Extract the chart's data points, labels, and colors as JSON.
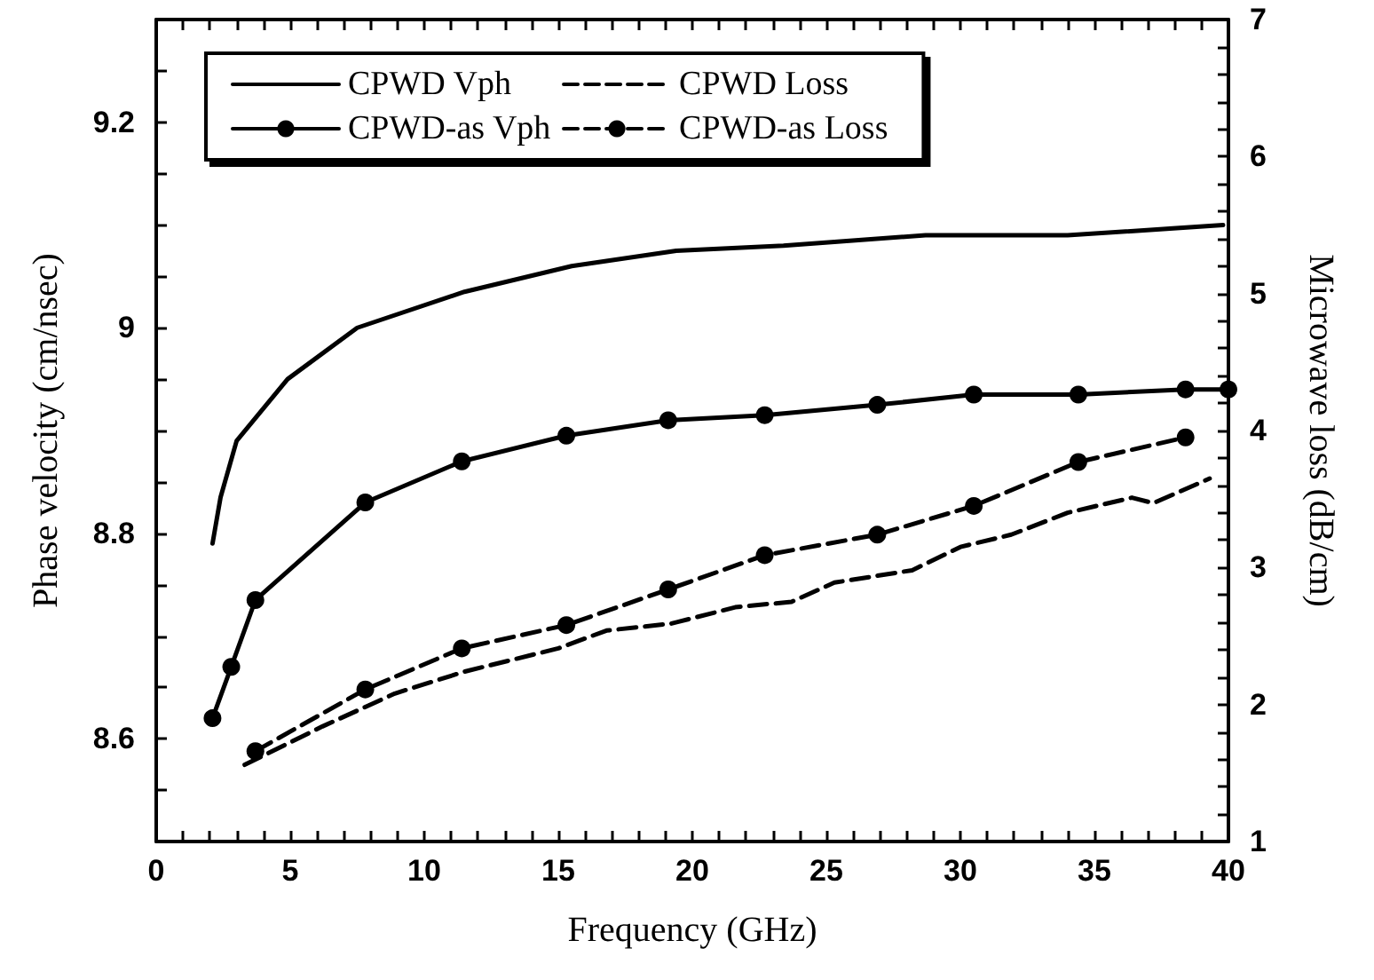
{
  "chart_data": {
    "type": "line",
    "xlabel": "Frequency (GHz)",
    "ylabel": "Phase velocity (cm/nsec)",
    "y2label": "Microwave loss (dB/cm)",
    "xlim": [
      0,
      40
    ],
    "xticks": [
      0,
      {
        "value": 1,
        "label": null
      },
      {
        "value": 2,
        "label": null
      },
      {
        "value": 3,
        "label": null
      },
      {
        "value": 4,
        "label": null
      },
      5,
      {
        "value": 6,
        "label": null
      },
      {
        "value": 7,
        "label": null
      },
      {
        "value": 8,
        "label": null
      },
      {
        "value": 9,
        "label": null
      },
      10,
      {
        "value": 11,
        "label": null
      },
      {
        "value": 12,
        "label": null
      },
      {
        "value": 13,
        "label": null
      },
      {
        "value": 14,
        "label": null
      },
      15,
      {
        "value": 16,
        "label": null
      },
      {
        "value": 17,
        "label": null
      },
      {
        "value": 18,
        "label": null
      },
      {
        "value": 19,
        "label": null
      },
      20,
      {
        "value": 21,
        "label": null
      },
      {
        "value": 22,
        "label": null
      },
      {
        "value": 23,
        "label": null
      },
      {
        "value": 24,
        "label": null
      },
      25,
      {
        "value": 26,
        "label": null
      },
      {
        "value": 27,
        "label": null
      },
      {
        "value": 28,
        "label": null
      },
      {
        "value": 29,
        "label": null
      },
      30,
      {
        "value": 31,
        "label": null
      },
      {
        "value": 32,
        "label": null
      },
      {
        "value": 33,
        "label": null
      },
      {
        "value": 34,
        "label": null
      },
      35,
      {
        "value": 36,
        "label": null
      },
      {
        "value": 37,
        "label": null
      },
      {
        "value": 38,
        "label": null
      },
      {
        "value": 39,
        "label": null
      },
      40
    ],
    "ylim": [
      8.5,
      9.3
    ],
    "yticks": [
      {
        "value": 8.55,
        "label": null
      },
      8.6,
      {
        "value": 8.65,
        "label": null
      },
      {
        "value": 8.7,
        "label": null
      },
      {
        "value": 8.75,
        "label": null
      },
      8.8,
      {
        "value": 8.85,
        "label": null
      },
      {
        "value": 8.9,
        "label": null
      },
      {
        "value": 8.95,
        "label": null
      },
      9,
      {
        "value": 9.05,
        "label": null
      },
      {
        "value": 9.1,
        "label": null
      },
      {
        "value": 9.15,
        "label": null
      },
      9.2,
      {
        "value": 9.25,
        "label": null
      }
    ],
    "y2lim": [
      1,
      7
    ],
    "y2ticks": [
      1,
      {
        "value": 1.2,
        "label": null
      },
      {
        "value": 1.4,
        "label": null
      },
      {
        "value": 1.6,
        "label": null
      },
      {
        "value": 1.8,
        "label": null
      },
      2,
      {
        "value": 2.2,
        "label": null
      },
      {
        "value": 2.4,
        "label": null
      },
      {
        "value": 2.6,
        "label": null
      },
      {
        "value": 2.8,
        "label": null
      },
      3,
      {
        "value": 3.2,
        "label": null
      },
      {
        "value": 3.4,
        "label": null
      },
      {
        "value": 3.6,
        "label": null
      },
      {
        "value": 3.8,
        "label": null
      },
      4,
      {
        "value": 4.2,
        "label": null
      },
      {
        "value": 4.4,
        "label": null
      },
      {
        "value": 4.6,
        "label": null
      },
      {
        "value": 4.8,
        "label": null
      },
      5,
      {
        "value": 5.2,
        "label": null
      },
      {
        "value": 5.4,
        "label": null
      },
      {
        "value": 5.6,
        "label": null
      },
      {
        "value": 5.8,
        "label": null
      },
      6,
      {
        "value": 6.2,
        "label": null
      },
      {
        "value": 6.4,
        "label": null
      },
      {
        "value": 6.6,
        "label": null
      },
      {
        "value": 6.8,
        "label": null
      },
      7
    ],
    "grid": false,
    "legend": "top left",
    "series": [
      {
        "name": "CPWD Vph",
        "color": "#000000",
        "marker": "none",
        "line_style": "solid",
        "x": [
          2.1,
          2.4,
          3.0,
          4.9,
          7.5,
          11.5,
          15.5,
          19.4,
          23.4,
          28.7,
          34.0,
          39.8
        ],
        "values": [
          8.79,
          8.835,
          8.89,
          8.95,
          9.0,
          9.035,
          9.06,
          9.075,
          9.08,
          9.09,
          9.09,
          9.1
        ]
      },
      {
        "name": "CPWD-as Vph",
        "color": "#000000",
        "marker": "circle",
        "line_style": "solid",
        "x": [
          2.1,
          2.8,
          3.7,
          7.8,
          11.4,
          15.3,
          19.1,
          22.7,
          26.9,
          30.5,
          34.4,
          38.4,
          40
        ],
        "values": [
          8.62,
          8.67,
          8.735,
          8.83,
          8.87,
          8.895,
          8.91,
          8.915,
          8.925,
          8.935,
          8.935,
          8.94,
          8.94
        ]
      },
      {
        "name": "CPWD Loss",
        "color": "#000000",
        "marker": "none",
        "line_style": "dashed",
        "axis": "y2",
        "x": [
          3.3,
          6.2,
          8.9,
          11.5,
          15.0,
          16.8,
          19.2,
          21.6,
          23.7,
          25.3,
          28.2,
          30.0,
          31.9,
          34.0,
          36.4,
          37.2,
          39.3
        ],
        "values": [
          1.56,
          1.84,
          2.08,
          2.24,
          2.41,
          2.54,
          2.59,
          2.71,
          2.75,
          2.89,
          2.98,
          3.15,
          3.24,
          3.4,
          3.51,
          3.47,
          3.65
        ]
      },
      {
        "name": "CPWD-as Loss",
        "color": "#000000",
        "marker": "circle",
        "line_style": "dashed",
        "axis": "y2",
        "x": [
          3.7,
          7.8,
          11.4,
          15.3,
          19.1,
          22.7,
          26.9,
          30.5,
          34.4,
          38.4
        ],
        "values": [
          1.66,
          2.11,
          2.41,
          2.58,
          2.84,
          3.09,
          3.24,
          3.45,
          3.77,
          3.95
        ]
      }
    ]
  }
}
